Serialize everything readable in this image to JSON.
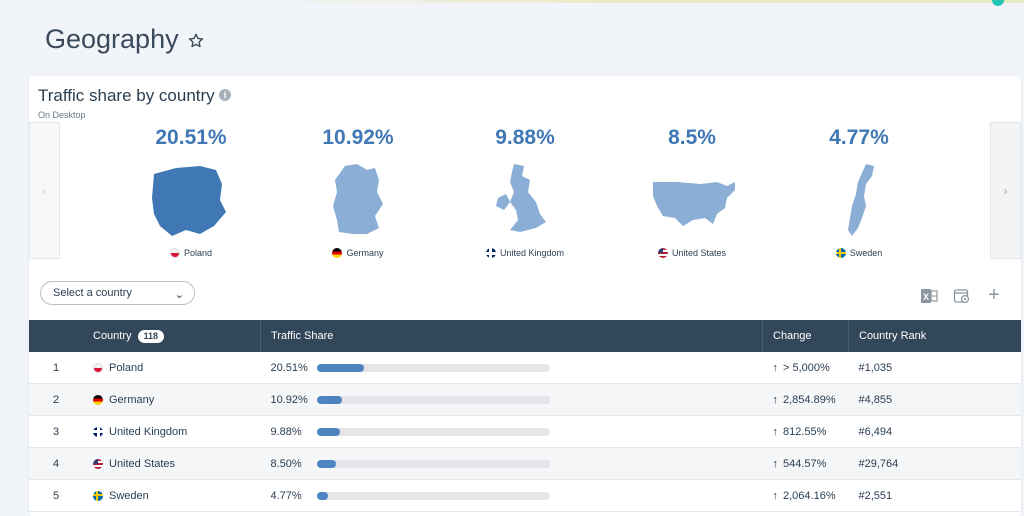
{
  "page": {
    "title": "Geography"
  },
  "card": {
    "title": "Traffic share by country",
    "subtitle": "On Desktop",
    "tiles": [
      {
        "pct": "20.51%",
        "country": "Poland",
        "flag": "poland"
      },
      {
        "pct": "10.92%",
        "country": "Germany",
        "flag": "germany"
      },
      {
        "pct": "9.88%",
        "country": "United Kingdom",
        "flag": "uk"
      },
      {
        "pct": "8.5%",
        "country": "United States",
        "flag": "us"
      },
      {
        "pct": "4.77%",
        "country": "Sweden",
        "flag": "sweden"
      }
    ]
  },
  "filter": {
    "select_value": "Select a country"
  },
  "table": {
    "headers": {
      "country": "Country",
      "country_count": "118",
      "share": "Traffic Share",
      "change": "Change",
      "rank": "Country Rank"
    },
    "rows": [
      {
        "n": "1",
        "country": "Poland",
        "flag": "poland",
        "share": "20.51%",
        "share_value": 0.2051,
        "change": "> 5,000%",
        "rank": "#1,035"
      },
      {
        "n": "2",
        "country": "Germany",
        "flag": "germany",
        "share": "10.92%",
        "share_value": 0.1092,
        "change": "2,854.89%",
        "rank": "#4,855"
      },
      {
        "n": "3",
        "country": "United Kingdom",
        "flag": "uk",
        "share": "9.88%",
        "share_value": 0.0988,
        "change": "812.55%",
        "rank": "#6,494"
      },
      {
        "n": "4",
        "country": "United States",
        "flag": "us",
        "share": "8.50%",
        "share_value": 0.085,
        "change": "544.57%",
        "rank": "#29,764"
      },
      {
        "n": "5",
        "country": "Sweden",
        "flag": "sweden",
        "share": "4.77%",
        "share_value": 0.0477,
        "change": "2,064.16%",
        "rank": "#2,551"
      }
    ]
  },
  "colors": {
    "accent": "#3f78b4",
    "header_bg": "#33475b",
    "positive": "#4aa84a",
    "map_light": "#8aaed6",
    "map_dark": "#3f78b4"
  },
  "icons": {
    "star": "star-outline-icon",
    "info": "info-icon",
    "excel": "excel-export-icon",
    "settings": "settings-icon",
    "plus": "plus-icon",
    "chevron": "chevron-down-icon"
  }
}
